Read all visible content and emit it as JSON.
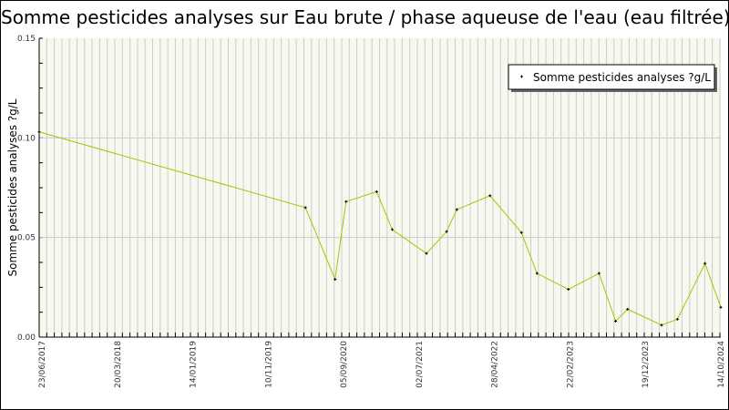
{
  "chart_data": {
    "type": "line",
    "title": "Somme pesticides analyses sur Eau brute / phase aqueuse de l'eau (eau filtrée)",
    "xlabel": "",
    "ylabel": "Somme pesticides analyses ?g/L",
    "ylim": [
      0,
      0.15
    ],
    "y_ticks": [
      "0.00",
      "0.05",
      "0.10",
      "0.15"
    ],
    "x_tick_labels": [
      "23/06/2017",
      "20/03/2018",
      "14/01/2019",
      "10/11/2019",
      "05/09/2020",
      "02/07/2021",
      "28/04/2022",
      "22/02/2023",
      "19/12/2023",
      "14/10/2024"
    ],
    "grid": true,
    "legend_position": "top-right",
    "colors": {
      "line": "#99cc00",
      "marker": "#000000",
      "plot_bg": "#f8f8f0",
      "grid": "#cccccc"
    },
    "series": [
      {
        "name": "Somme pesticides analyses ?g/L",
        "x": [
          "2017-06-23",
          "2020-05-01",
          "2020-08-25",
          "2020-10-07",
          "2021-02-04",
          "2021-04-06",
          "2021-08-18",
          "2021-11-05",
          "2021-12-15",
          "2022-04-24",
          "2022-08-25",
          "2022-10-25",
          "2023-02-25",
          "2023-06-25",
          "2023-08-29",
          "2023-10-15",
          "2024-02-25",
          "2024-04-27",
          "2024-08-13",
          "2024-10-14"
        ],
        "values": [
          0.103,
          0.065,
          0.029,
          0.068,
          0.073,
          0.054,
          0.042,
          0.053,
          0.064,
          0.071,
          0.0525,
          0.032,
          0.024,
          0.032,
          0.008,
          0.014,
          0.006,
          0.009,
          0.037,
          0.015
        ]
      }
    ]
  }
}
